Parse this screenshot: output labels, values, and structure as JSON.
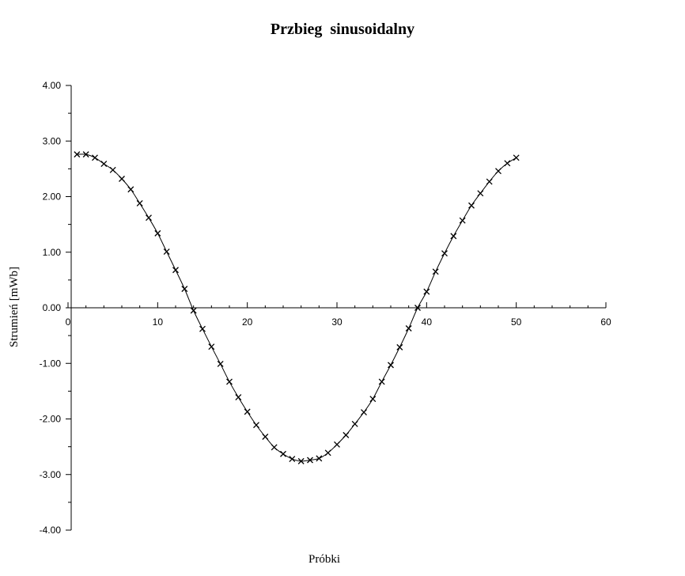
{
  "chart_data": {
    "type": "line",
    "title": "Przbieg  sinusoidalny",
    "xlabel": "Próbki",
    "ylabel": "Strumień [mWb]",
    "xlim": [
      0,
      60
    ],
    "ylim": [
      -4,
      4
    ],
    "x_ticks": [
      0,
      10,
      20,
      30,
      40,
      50,
      60
    ],
    "x_tick_labels": [
      "0",
      "10",
      "20",
      "30",
      "40",
      "50",
      "60"
    ],
    "y_ticks": [
      4,
      3,
      2,
      1,
      0,
      -1,
      -2,
      -3,
      -4
    ],
    "y_tick_labels": [
      "4.00",
      "3.00",
      "2.00",
      "1.00",
      "0.00",
      "-1.00",
      "-2.00",
      "-3.00",
      "-4.00"
    ],
    "grid": false,
    "line_color": "#000000",
    "marker": "x",
    "series": [
      {
        "x": [
          1,
          2,
          3,
          4,
          5,
          6,
          7,
          8,
          9,
          10,
          11,
          12,
          13,
          14,
          15,
          16,
          17,
          18,
          19,
          20,
          21,
          22,
          23,
          24,
          25,
          26,
          27,
          28,
          29,
          30,
          31,
          32,
          33,
          34,
          35,
          36,
          37,
          38,
          39,
          40,
          41,
          42,
          43,
          44,
          45,
          46,
          47,
          48,
          49,
          50
        ],
        "values": [
          2.76,
          2.76,
          2.7,
          2.59,
          2.48,
          2.32,
          2.13,
          1.88,
          1.62,
          1.34,
          1.01,
          0.68,
          0.34,
          -0.05,
          -0.38,
          -0.7,
          -1.01,
          -1.33,
          -1.61,
          -1.87,
          -2.11,
          -2.32,
          -2.51,
          -2.63,
          -2.72,
          -2.76,
          -2.74,
          -2.71,
          -2.61,
          -2.46,
          -2.29,
          -2.09,
          -1.88,
          -1.64,
          -1.33,
          -1.03,
          -0.71,
          -0.37,
          0.0,
          0.29,
          0.65,
          0.98,
          1.29,
          1.57,
          1.84,
          2.06,
          2.27,
          2.46,
          2.6,
          2.7
        ]
      }
    ]
  }
}
